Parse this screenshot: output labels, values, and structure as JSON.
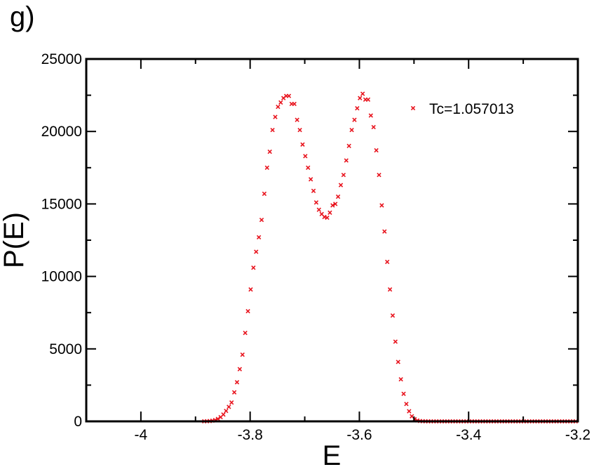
{
  "panel_label": "g)",
  "chart_data": {
    "type": "scatter",
    "title": "",
    "xlabel": "E",
    "ylabel": "P(E)",
    "xlim": [
      -4.1,
      -3.2
    ],
    "ylim": [
      0,
      25000
    ],
    "x_ticks": [
      -4,
      -3.8,
      -3.6,
      -3.4,
      -3.2
    ],
    "x_tick_labels": [
      "-4",
      "-3.8",
      "-3.6",
      "-3.4",
      "-3.2"
    ],
    "y_ticks": [
      0,
      5000,
      10000,
      15000,
      20000,
      25000
    ],
    "y_tick_labels": [
      "0",
      "5000",
      "10000",
      "15000",
      "20000",
      "25000"
    ],
    "grid": false,
    "legend_position": "top-right",
    "marker": "x",
    "series": [
      {
        "name": "Tc=1.057013",
        "color": "#e8141e",
        "points": [
          [
            -3.884,
            5
          ],
          [
            -3.879,
            10
          ],
          [
            -3.874,
            20
          ],
          [
            -3.869,
            45
          ],
          [
            -3.864,
            90
          ],
          [
            -3.859,
            170
          ],
          [
            -3.854,
            290
          ],
          [
            -3.849,
            470
          ],
          [
            -3.844,
            720
          ],
          [
            -3.839,
            1000
          ],
          [
            -3.834,
            1300
          ],
          [
            -3.829,
            2000
          ],
          [
            -3.824,
            2700
          ],
          [
            -3.819,
            3600
          ],
          [
            -3.814,
            4600
          ],
          [
            -3.809,
            6100
          ],
          [
            -3.804,
            7600
          ],
          [
            -3.799,
            9100
          ],
          [
            -3.794,
            10600
          ],
          [
            -3.789,
            11700
          ],
          [
            -3.784,
            12700
          ],
          [
            -3.779,
            13900
          ],
          [
            -3.774,
            15700
          ],
          [
            -3.769,
            17500
          ],
          [
            -3.764,
            18600
          ],
          [
            -3.759,
            20100
          ],
          [
            -3.754,
            21000
          ],
          [
            -3.749,
            21700
          ],
          [
            -3.744,
            22000
          ],
          [
            -3.739,
            22300
          ],
          [
            -3.734,
            22450
          ],
          [
            -3.729,
            22450
          ],
          [
            -3.724,
            21900
          ],
          [
            -3.719,
            21900
          ],
          [
            -3.714,
            20800
          ],
          [
            -3.709,
            20100
          ],
          [
            -3.704,
            19100
          ],
          [
            -3.699,
            18300
          ],
          [
            -3.694,
            17500
          ],
          [
            -3.689,
            16700
          ],
          [
            -3.684,
            15900
          ],
          [
            -3.679,
            15100
          ],
          [
            -3.674,
            14600
          ],
          [
            -3.669,
            14300
          ],
          [
            -3.664,
            14100
          ],
          [
            -3.659,
            14050
          ],
          [
            -3.654,
            14400
          ],
          [
            -3.649,
            14900
          ],
          [
            -3.644,
            15000
          ],
          [
            -3.639,
            15500
          ],
          [
            -3.634,
            16300
          ],
          [
            -3.629,
            17000
          ],
          [
            -3.624,
            18000
          ],
          [
            -3.619,
            19000
          ],
          [
            -3.614,
            20100
          ],
          [
            -3.609,
            20800
          ],
          [
            -3.604,
            21600
          ],
          [
            -3.599,
            22300
          ],
          [
            -3.594,
            22600
          ],
          [
            -3.589,
            22200
          ],
          [
            -3.584,
            22200
          ],
          [
            -3.579,
            21100
          ],
          [
            -3.574,
            20300
          ],
          [
            -3.569,
            18700
          ],
          [
            -3.564,
            17000
          ],
          [
            -3.559,
            14900
          ],
          [
            -3.554,
            13100
          ],
          [
            -3.549,
            11000
          ],
          [
            -3.544,
            9100
          ],
          [
            -3.539,
            7300
          ],
          [
            -3.534,
            5500
          ],
          [
            -3.529,
            4100
          ],
          [
            -3.524,
            2900
          ],
          [
            -3.519,
            1900
          ],
          [
            -3.514,
            1200
          ],
          [
            -3.509,
            700
          ],
          [
            -3.504,
            350
          ],
          [
            -3.499,
            150
          ],
          [
            -3.494,
            60
          ],
          [
            -3.489,
            25
          ],
          [
            -3.484,
            10
          ],
          [
            -3.479,
            5
          ],
          [
            -3.474,
            2
          ],
          [
            -3.469,
            0
          ],
          [
            -3.464,
            0
          ],
          [
            -3.459,
            0
          ],
          [
            -3.454,
            0
          ],
          [
            -3.449,
            0
          ],
          [
            -3.444,
            0
          ],
          [
            -3.439,
            0
          ],
          [
            -3.434,
            0
          ],
          [
            -3.429,
            0
          ],
          [
            -3.424,
            0
          ],
          [
            -3.419,
            0
          ],
          [
            -3.414,
            0
          ],
          [
            -3.409,
            0
          ],
          [
            -3.404,
            0
          ],
          [
            -3.399,
            0
          ],
          [
            -3.394,
            0
          ],
          [
            -3.389,
            0
          ],
          [
            -3.384,
            0
          ],
          [
            -3.379,
            0
          ],
          [
            -3.374,
            0
          ],
          [
            -3.369,
            0
          ],
          [
            -3.364,
            0
          ],
          [
            -3.359,
            0
          ],
          [
            -3.354,
            0
          ],
          [
            -3.349,
            0
          ],
          [
            -3.344,
            0
          ],
          [
            -3.339,
            0
          ],
          [
            -3.334,
            0
          ],
          [
            -3.329,
            0
          ],
          [
            -3.324,
            0
          ],
          [
            -3.319,
            0
          ],
          [
            -3.314,
            0
          ],
          [
            -3.309,
            0
          ],
          [
            -3.304,
            0
          ],
          [
            -3.299,
            0
          ],
          [
            -3.294,
            0
          ],
          [
            -3.289,
            0
          ],
          [
            -3.284,
            0
          ],
          [
            -3.279,
            0
          ],
          [
            -3.274,
            0
          ],
          [
            -3.269,
            0
          ],
          [
            -3.264,
            0
          ],
          [
            -3.259,
            0
          ],
          [
            -3.254,
            0
          ],
          [
            -3.249,
            0
          ],
          [
            -3.244,
            0
          ],
          [
            -3.239,
            0
          ],
          [
            -3.234,
            0
          ],
          [
            -3.229,
            0
          ],
          [
            -3.224,
            0
          ],
          [
            -3.219,
            0
          ],
          [
            -3.214,
            0
          ],
          [
            -3.209,
            0
          ],
          [
            -3.204,
            0
          ]
        ]
      }
    ]
  }
}
